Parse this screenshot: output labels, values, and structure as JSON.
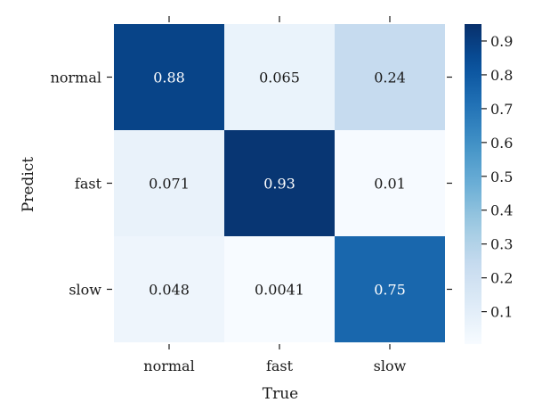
{
  "chart_data": {
    "type": "heatmap",
    "x_categories": [
      "normal",
      "fast",
      "slow"
    ],
    "y_categories": [
      "normal",
      "fast",
      "slow"
    ],
    "values": [
      [
        0.88,
        0.065,
        0.24
      ],
      [
        0.071,
        0.93,
        0.01
      ],
      [
        0.048,
        0.0041,
        0.75
      ]
    ],
    "cell_labels": [
      [
        "0.88",
        "0.065",
        "0.24"
      ],
      [
        "0.071",
        "0.93",
        "0.01"
      ],
      [
        "0.048",
        "0.0041",
        "0.75"
      ]
    ],
    "xlabel": "True",
    "ylabel": "Predict",
    "colormap": "Blues",
    "colorbar": {
      "range": [
        0.0041,
        0.95
      ],
      "ticks": [
        0.1,
        0.2,
        0.3,
        0.4,
        0.5,
        0.6,
        0.7,
        0.8,
        0.9
      ],
      "tick_labels": [
        "0.1",
        "0.2",
        "0.3",
        "0.4",
        "0.5",
        "0.6",
        "0.7",
        "0.8",
        "0.9"
      ]
    },
    "grid": false,
    "legend": "colorbar-right"
  }
}
